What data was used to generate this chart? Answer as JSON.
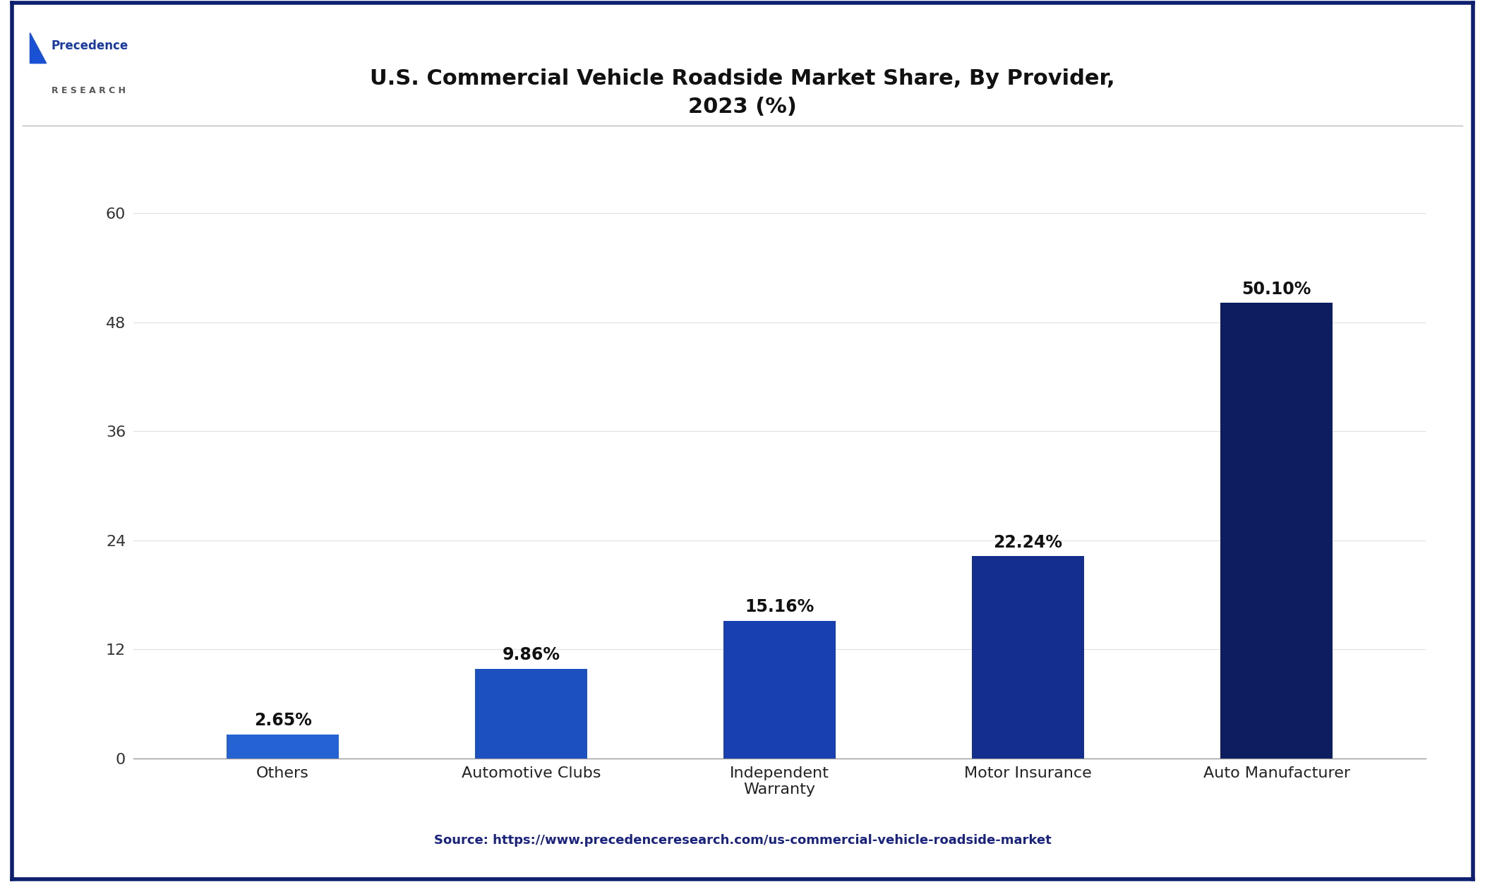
{
  "title_line1": "U.S. Commercial Vehicle Roadside Market Share, By Provider,",
  "title_line2": "2023 (%)",
  "categories": [
    "Others",
    "Automotive Clubs",
    "Independent\nWarranty",
    "Motor Insurance",
    "Auto Manufacturer"
  ],
  "values": [
    2.65,
    9.86,
    15.16,
    22.24,
    50.1
  ],
  "labels": [
    "2.65%",
    "9.86%",
    "15.16%",
    "22.24%",
    "50.10%"
  ],
  "bar_colors": [
    "#2563d4",
    "#1c4fc0",
    "#1840b0",
    "#142e90",
    "#0c1d60"
  ],
  "yticks": [
    0,
    12,
    24,
    36,
    48,
    60
  ],
  "ylim": [
    0,
    65
  ],
  "title_fontsize": 22,
  "label_fontsize": 17,
  "tick_fontsize": 16,
  "source_text": "Source: https://www.precedenceresearch.com/us-commercial-vehicle-roadside-market",
  "background_color": "#ffffff",
  "border_color": "#0d1f6e",
  "footer_bg_color": "#f5f5e8",
  "grid_color": "#e0e0e0",
  "bar_width": 0.45
}
